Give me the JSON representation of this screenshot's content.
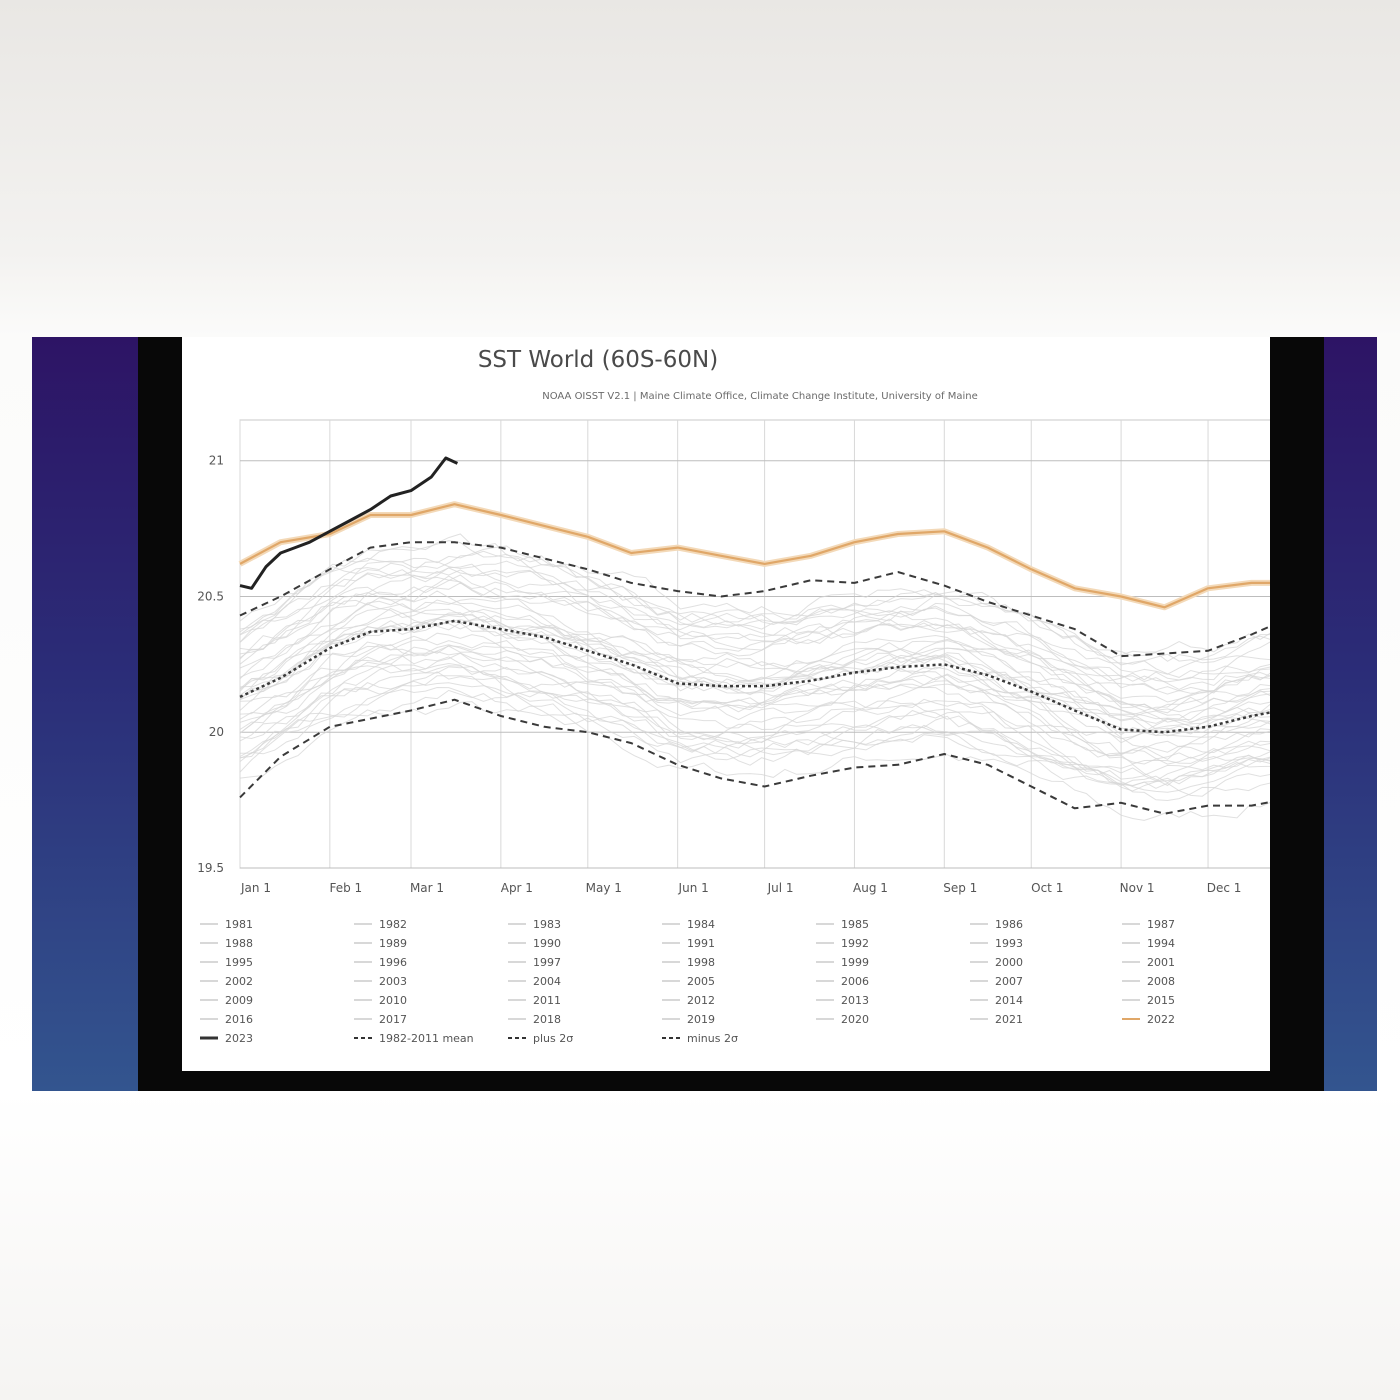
{
  "chart_data": {
    "type": "line",
    "title": "SST World (60S-60N)",
    "subtitle": "NOAA OISST V2.1 | Maine Climate Office, Climate Change Institute, University of Maine",
    "xlabel": "",
    "ylabel": "",
    "ylim": [
      19.5,
      21.15
    ],
    "xlim": [
      1,
      365
    ],
    "x_units": "day of year",
    "x_ticks": [
      {
        "day": 1,
        "label": "Jan 1"
      },
      {
        "day": 32,
        "label": "Feb 1"
      },
      {
        "day": 60,
        "label": "Mar 1"
      },
      {
        "day": 91,
        "label": "Apr 1"
      },
      {
        "day": 121,
        "label": "May 1"
      },
      {
        "day": 152,
        "label": "Jun 1"
      },
      {
        "day": 182,
        "label": "Jul 1"
      },
      {
        "day": 213,
        "label": "Aug 1"
      },
      {
        "day": 244,
        "label": "Sep 1"
      },
      {
        "day": 274,
        "label": "Oct 1"
      },
      {
        "day": 305,
        "label": "Nov 1"
      },
      {
        "day": 335,
        "label": "Dec 1"
      }
    ],
    "y_ticks": [
      19.5,
      20,
      20.5,
      21
    ],
    "grid": true,
    "legend_placement": "bottom",
    "background_years": [
      "1981",
      "1982",
      "1983",
      "1984",
      "1985",
      "1986",
      "1987",
      "1988",
      "1989",
      "1990",
      "1991",
      "1992",
      "1993",
      "1994",
      "1995",
      "1996",
      "1997",
      "1998",
      "1999",
      "2000",
      "2001",
      "2002",
      "2003",
      "2004",
      "2005",
      "2006",
      "2007",
      "2008",
      "2009",
      "2010",
      "2011",
      "2012",
      "2013",
      "2014",
      "2015",
      "2016",
      "2017",
      "2018",
      "2019",
      "2020",
      "2021"
    ],
    "background_color": "#d6d6d6",
    "series": [
      {
        "name": "2022",
        "color": "#e0a768",
        "style": "solid",
        "x": [
          1,
          15,
          32,
          46,
          60,
          75,
          91,
          106,
          121,
          136,
          152,
          167,
          182,
          198,
          213,
          228,
          244,
          259,
          274,
          289,
          305,
          320,
          335,
          350,
          365
        ],
        "values": [
          20.62,
          20.7,
          20.73,
          20.8,
          20.8,
          20.84,
          20.8,
          20.76,
          20.72,
          20.66,
          20.68,
          20.65,
          20.62,
          20.65,
          20.7,
          20.73,
          20.74,
          20.68,
          20.6,
          20.53,
          20.5,
          20.46,
          20.53,
          20.55,
          20.55
        ]
      },
      {
        "name": "2023",
        "color": "#222222",
        "style": "solid-bold",
        "x": [
          1,
          5,
          10,
          15,
          20,
          25,
          32,
          39,
          46,
          53,
          60,
          67,
          72,
          76
        ],
        "values": [
          20.54,
          20.53,
          20.61,
          20.66,
          20.68,
          20.7,
          20.74,
          20.78,
          20.82,
          20.87,
          20.89,
          20.94,
          21.01,
          20.99
        ]
      },
      {
        "name": "1982-2011 mean",
        "color": "#3a3a3a",
        "style": "dotted",
        "x": [
          1,
          15,
          32,
          46,
          60,
          75,
          91,
          106,
          121,
          136,
          152,
          167,
          182,
          198,
          213,
          228,
          244,
          259,
          274,
          289,
          305,
          320,
          335,
          350,
          365
        ],
        "values": [
          20.13,
          20.2,
          20.31,
          20.37,
          20.38,
          20.41,
          20.38,
          20.35,
          20.3,
          20.25,
          20.18,
          20.17,
          20.17,
          20.19,
          20.22,
          20.24,
          20.25,
          20.21,
          20.15,
          20.08,
          20.01,
          20.0,
          20.02,
          20.06,
          20.09
        ]
      },
      {
        "name": "plus 2σ",
        "color": "#3a3a3a",
        "style": "dashed",
        "x": [
          1,
          15,
          32,
          46,
          60,
          75,
          91,
          106,
          121,
          136,
          152,
          167,
          182,
          198,
          213,
          228,
          244,
          259,
          274,
          289,
          305,
          320,
          335,
          350,
          365
        ],
        "values": [
          20.43,
          20.5,
          20.6,
          20.68,
          20.7,
          20.7,
          20.68,
          20.64,
          20.6,
          20.55,
          20.52,
          20.5,
          20.52,
          20.56,
          20.55,
          20.59,
          20.54,
          20.48,
          20.43,
          20.38,
          20.28,
          20.29,
          20.3,
          20.36,
          20.43
        ]
      },
      {
        "name": "minus 2σ",
        "color": "#3a3a3a",
        "style": "dashed",
        "x": [
          1,
          15,
          32,
          46,
          60,
          75,
          91,
          106,
          121,
          136,
          152,
          167,
          182,
          198,
          213,
          228,
          244,
          259,
          274,
          289,
          305,
          320,
          335,
          350,
          365
        ],
        "values": [
          19.76,
          19.91,
          20.02,
          20.05,
          20.08,
          20.12,
          20.06,
          20.02,
          20.0,
          19.96,
          19.88,
          19.83,
          19.8,
          19.84,
          19.87,
          19.88,
          19.92,
          19.88,
          19.8,
          19.72,
          19.74,
          19.7,
          19.73,
          19.73,
          19.76
        ]
      }
    ],
    "legend": [
      {
        "label": "1981",
        "kind": "faint"
      },
      {
        "label": "1982",
        "kind": "faint"
      },
      {
        "label": "1983",
        "kind": "faint"
      },
      {
        "label": "1984",
        "kind": "faint"
      },
      {
        "label": "1985",
        "kind": "faint"
      },
      {
        "label": "1986",
        "kind": "faint"
      },
      {
        "label": "1987",
        "kind": "faint"
      },
      {
        "label": "1988",
        "kind": "faint"
      },
      {
        "label": "1989",
        "kind": "faint"
      },
      {
        "label": "1990",
        "kind": "faint"
      },
      {
        "label": "1991",
        "kind": "faint"
      },
      {
        "label": "1992",
        "kind": "faint"
      },
      {
        "label": "1993",
        "kind": "faint"
      },
      {
        "label": "1994",
        "kind": "faint"
      },
      {
        "label": "1995",
        "kind": "faint"
      },
      {
        "label": "1996",
        "kind": "faint"
      },
      {
        "label": "1997",
        "kind": "faint"
      },
      {
        "label": "1998",
        "kind": "faint"
      },
      {
        "label": "1999",
        "kind": "faint"
      },
      {
        "label": "2000",
        "kind": "faint"
      },
      {
        "label": "2001",
        "kind": "faint"
      },
      {
        "label": "2002",
        "kind": "faint"
      },
      {
        "label": "2003",
        "kind": "faint"
      },
      {
        "label": "2004",
        "kind": "faint"
      },
      {
        "label": "2005",
        "kind": "faint"
      },
      {
        "label": "2006",
        "kind": "faint"
      },
      {
        "label": "2007",
        "kind": "faint"
      },
      {
        "label": "2008",
        "kind": "faint"
      },
      {
        "label": "2009",
        "kind": "faint"
      },
      {
        "label": "2010",
        "kind": "faint"
      },
      {
        "label": "2011",
        "kind": "faint"
      },
      {
        "label": "2012",
        "kind": "faint"
      },
      {
        "label": "2013",
        "kind": "faint"
      },
      {
        "label": "2014",
        "kind": "faint"
      },
      {
        "label": "2015",
        "kind": "faint"
      },
      {
        "label": "2016",
        "kind": "faint"
      },
      {
        "label": "2017",
        "kind": "faint"
      },
      {
        "label": "2018",
        "kind": "faint"
      },
      {
        "label": "2019",
        "kind": "faint"
      },
      {
        "label": "2020",
        "kind": "faint"
      },
      {
        "label": "2021",
        "kind": "faint"
      },
      {
        "label": "2022",
        "kind": "orange"
      },
      {
        "label": "2023",
        "kind": "bold"
      },
      {
        "label": "1982-2011 mean",
        "kind": "dotted"
      },
      {
        "label": "plus 2σ",
        "kind": "dashed"
      },
      {
        "label": "minus 2σ",
        "kind": "dashed"
      }
    ]
  }
}
